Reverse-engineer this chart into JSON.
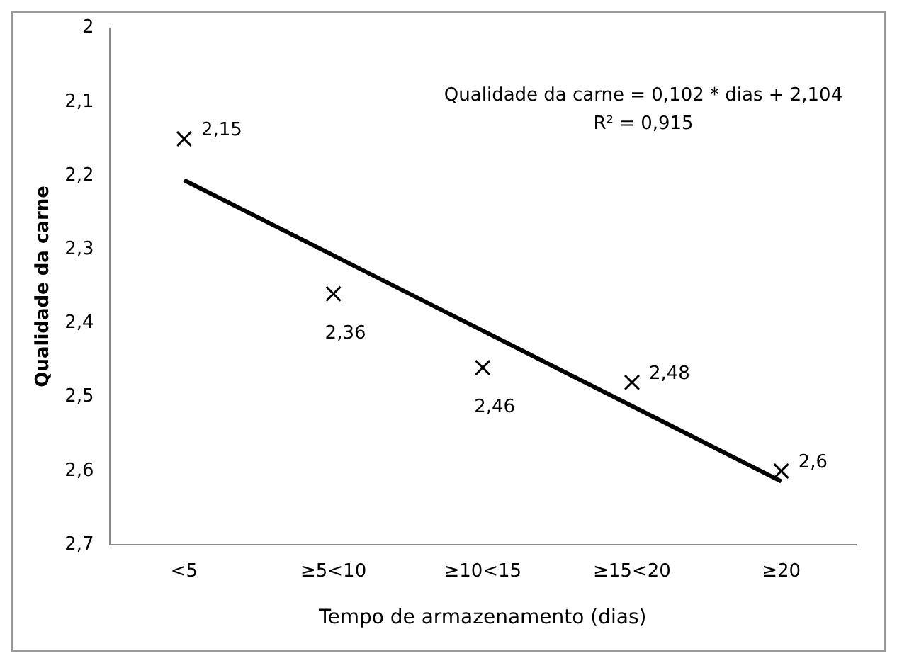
{
  "chart_data": {
    "type": "scatter",
    "xlabel": "Tempo de armazenamento (dias)",
    "ylabel": "Qualidade da carne",
    "categories": [
      "<5",
      "≥5<10",
      "≥10<15",
      "≥15<20",
      "≥20"
    ],
    "series": [
      {
        "color": "#000000",
        "values": [
          2.15,
          2.36,
          2.46,
          2.48,
          2.6
        ],
        "value_labels": [
          "2,15",
          "2,36",
          "2,46",
          "2,48",
          "2,6"
        ],
        "marker": "cross"
      },
      {
        "type": "line",
        "color": "#000000",
        "values": [
          2.206,
          2.308,
          2.41,
          2.512,
          2.614
        ],
        "marker": "none",
        "line_style": "solid"
      }
    ],
    "ylim": [
      2.7,
      2
    ],
    "yticks": [
      {
        "value": 2,
        "label": "2"
      },
      {
        "value": 2.1,
        "label": "2,1"
      },
      {
        "value": 2.2,
        "label": "2,2"
      },
      {
        "value": 2.3,
        "label": "2,3"
      },
      {
        "value": 2.4,
        "label": "2,4"
      },
      {
        "value": 2.5,
        "label": "2,5"
      },
      {
        "value": 2.6,
        "label": "2,6"
      },
      {
        "value": 2.7,
        "label": "2,7"
      }
    ],
    "annotations": [
      "Qualidade da carne = 0,102 * dias + 2,104",
      "R² = 0,915"
    ],
    "grid": false,
    "legend": false
  }
}
